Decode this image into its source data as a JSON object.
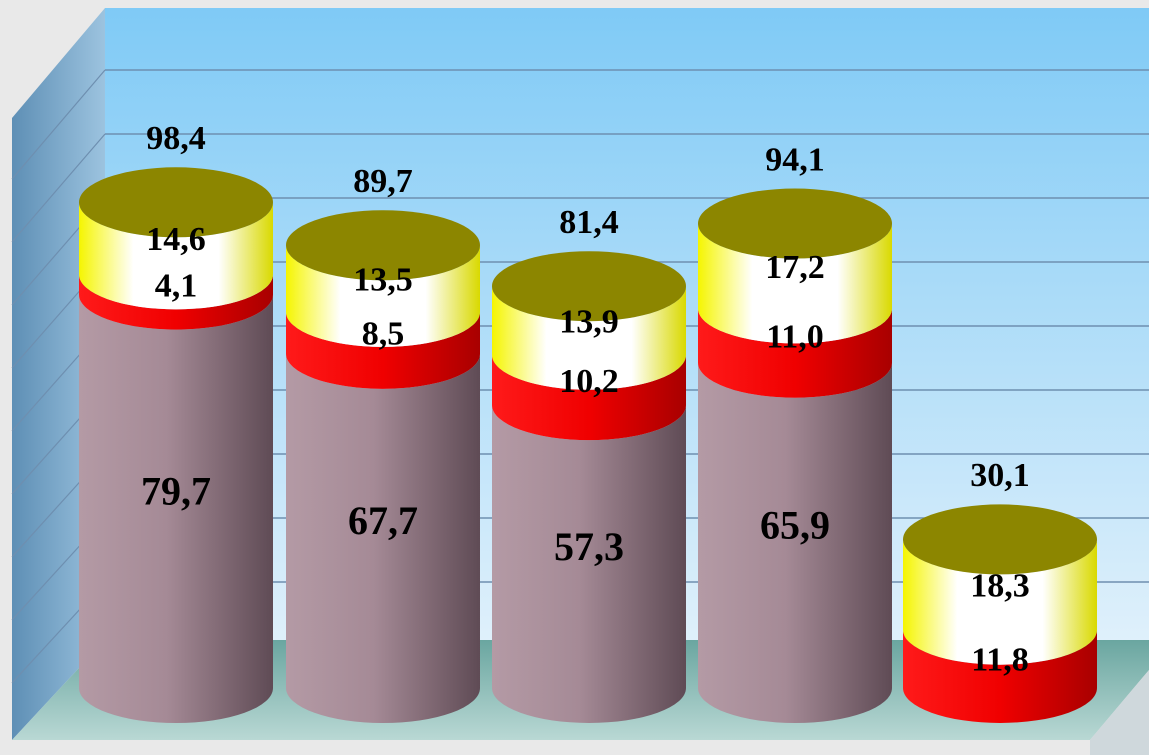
{
  "chart_data": {
    "type": "bar",
    "stacked": true,
    "style": "3d-cylinder",
    "title": "",
    "xlabel": "",
    "ylabel": "",
    "ylim": [
      0,
      100
    ],
    "grid": true,
    "legend": "none",
    "categories": [
      "",
      "",
      "",
      "",
      ""
    ],
    "series": [
      {
        "color": "#a88d98",
        "values": [
          79.7,
          67.7,
          57.3,
          65.9,
          0
        ]
      },
      {
        "color": "#ee0000",
        "values": [
          4.1,
          8.5,
          10.2,
          11.0,
          11.8
        ]
      },
      {
        "color": "#f5f500",
        "values": [
          14.6,
          13.5,
          13.9,
          17.2,
          18.3
        ]
      }
    ],
    "segment_labels": [
      [
        "79,7",
        "4,1",
        "14,6"
      ],
      [
        "67,7",
        "8,5",
        "13,5"
      ],
      [
        "57,3",
        "10,2",
        "13,9"
      ],
      [
        "65,9",
        "11,0",
        "17,2"
      ],
      [
        "",
        "11,8",
        "18,3"
      ]
    ],
    "totals": [
      98.4,
      89.7,
      81.4,
      94.1,
      30.1
    ],
    "total_labels": [
      "98,4",
      "89,7",
      "81,4",
      "94,1",
      "30,1"
    ],
    "colors": {
      "wall_top": "#86cdf7",
      "wall_bottom": "#d9eefb",
      "floor": "#6aa5a0",
      "gridline": "#6e8fb0",
      "top_cap": "#8c8600"
    }
  }
}
